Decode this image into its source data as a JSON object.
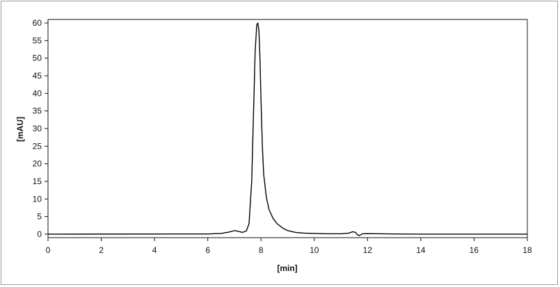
{
  "chart_data": {
    "type": "line",
    "xlabel": "[min]",
    "ylabel": "[mAU]",
    "xlim": [
      0,
      18
    ],
    "ylim": [
      -1,
      61
    ],
    "x_ticks": [
      0,
      2,
      4,
      6,
      8,
      10,
      12,
      14,
      16,
      18
    ],
    "y_ticks": [
      0,
      5,
      10,
      15,
      20,
      25,
      30,
      35,
      40,
      45,
      50,
      55,
      60
    ],
    "grid": false,
    "legend": "none",
    "line_color": "#000000",
    "series": [
      {
        "x": [
          0,
          6.0,
          6.5,
          6.8,
          7.0,
          7.15,
          7.3,
          7.45,
          7.55,
          7.65,
          7.72,
          7.78,
          7.84,
          7.88,
          7.92,
          7.96,
          8.0,
          8.05,
          8.1,
          8.2,
          8.3,
          8.45,
          8.6,
          8.8,
          9.0,
          9.3,
          9.6,
          10.0,
          10.5,
          11.0,
          11.3,
          11.45,
          11.55,
          11.62,
          11.7,
          11.8,
          12.0,
          12.5,
          13.0,
          14.0,
          16.0,
          18.0
        ],
        "y": [
          0,
          0.05,
          0.2,
          0.6,
          1.0,
          0.8,
          0.5,
          0.9,
          3.0,
          15.0,
          35.0,
          52.0,
          59.5,
          60.0,
          58.0,
          50.0,
          38.0,
          25.0,
          17.0,
          10.5,
          7.0,
          4.5,
          3.0,
          1.8,
          1.0,
          0.5,
          0.3,
          0.2,
          0.1,
          0.1,
          0.3,
          0.7,
          0.5,
          -0.2,
          -0.4,
          0.1,
          0.15,
          0.1,
          0.05,
          0.0,
          0.0,
          0.0
        ]
      }
    ]
  }
}
